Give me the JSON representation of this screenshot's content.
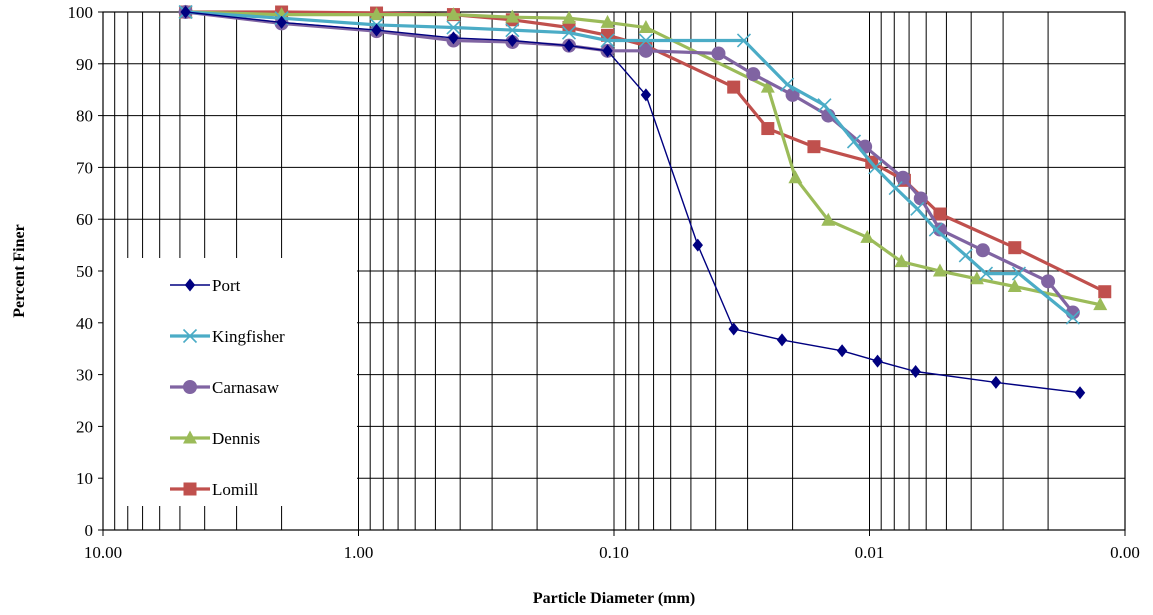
{
  "chart_data": {
    "type": "line",
    "title": "",
    "xlabel": "Particle Diameter (mm)",
    "ylabel": "Percent Finer",
    "x_scale": "log",
    "x_reversed": true,
    "xlim": [
      10,
      0.001
    ],
    "ylim": [
      0,
      100
    ],
    "x_tick_labels": [
      "10.00",
      "1.00",
      "0.10",
      "0.01",
      "0.00"
    ],
    "y_tick_labels": [
      "0",
      "10",
      "20",
      "30",
      "40",
      "50",
      "60",
      "70",
      "80",
      "90",
      "100"
    ],
    "grid": "vertical log minor gridlines, horizontal gridlines in plot right region",
    "legend_position": "left",
    "series": [
      {
        "name": "Port",
        "color": "#000080",
        "marker": "diamond",
        "x": [
          4.75,
          2.0,
          0.85,
          0.425,
          0.25,
          0.15,
          0.106,
          0.075,
          0.047,
          0.034,
          0.022,
          0.0128,
          0.0093,
          0.0066,
          0.0032,
          0.0015
        ],
        "y": [
          100,
          98,
          96.5,
          95,
          94.5,
          93.5,
          92.5,
          84,
          55,
          38.8,
          36.7,
          34.6,
          32.6,
          30.6,
          28.5,
          26.5
        ]
      },
      {
        "name": "Kingfisher",
        "color": "#4BACC6",
        "marker": "x",
        "x": [
          4.75,
          2.0,
          0.85,
          0.425,
          0.25,
          0.15,
          0.106,
          0.075,
          0.031,
          0.021,
          0.015,
          0.0115,
          0.0095,
          0.0079,
          0.0065,
          0.0055,
          0.0042,
          0.0035,
          0.0026,
          0.0016
        ],
        "y": [
          100,
          98.8,
          97.5,
          97,
          96.5,
          96,
          94.5,
          94.5,
          94.5,
          86,
          82,
          75,
          70,
          66,
          62,
          58,
          53,
          49.5,
          49.5,
          41
        ]
      },
      {
        "name": "Carnasaw",
        "color": "#8064A2",
        "marker": "circle",
        "x": [
          4.75,
          2.0,
          0.85,
          0.425,
          0.25,
          0.15,
          0.106,
          0.075,
          0.039,
          0.0285,
          0.02,
          0.0145,
          0.0104,
          0.0074,
          0.0063,
          0.0053,
          0.0036,
          0.002,
          0.0016
        ],
        "y": [
          100,
          97.8,
          96.3,
          94.5,
          94.2,
          93.5,
          92.5,
          92.5,
          92,
          88,
          84,
          80,
          74,
          68,
          64,
          58,
          54,
          48,
          42
        ]
      },
      {
        "name": "Dennis",
        "color": "#9BBB59",
        "marker": "triangle",
        "x": [
          4.75,
          2.0,
          0.85,
          0.425,
          0.25,
          0.15,
          0.106,
          0.075,
          0.025,
          0.0195,
          0.0145,
          0.0102,
          0.0075,
          0.0053,
          0.0038,
          0.0027,
          0.00125
        ],
        "y": [
          100,
          99.5,
          99.5,
          99.5,
          99,
          98.8,
          98,
          97,
          85.5,
          68,
          59.8,
          56.5,
          51.8,
          50,
          48.5,
          47,
          43.5
        ]
      },
      {
        "name": "Lomill",
        "color": "#C0504D",
        "marker": "square",
        "x": [
          4.75,
          2.0,
          0.85,
          0.425,
          0.25,
          0.15,
          0.106,
          0.075,
          0.034,
          0.025,
          0.0165,
          0.0098,
          0.0073,
          0.0053,
          0.0027,
          0.0012
        ],
        "y": [
          100,
          100,
          99.8,
          99.5,
          98.5,
          97,
          95.5,
          93.5,
          85.5,
          77.5,
          74,
          71,
          67.5,
          61,
          54.5,
          46
        ]
      }
    ]
  }
}
